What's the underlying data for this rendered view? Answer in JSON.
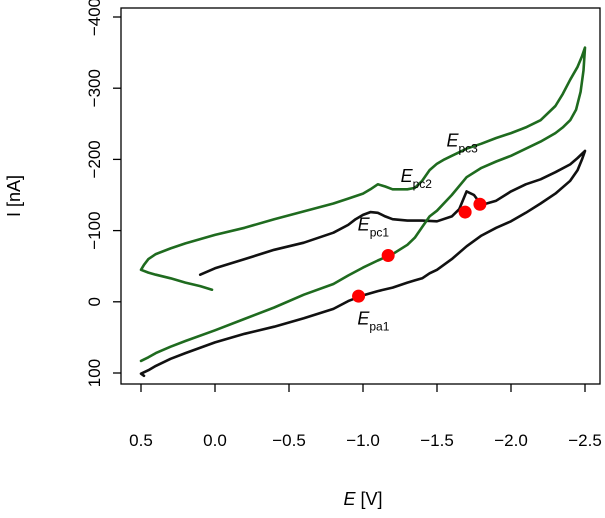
{
  "chart_data": {
    "type": "line",
    "title": "",
    "xlabel_symbol": "E",
    "xlabel_unit": " [V]",
    "ylabel": "I [nA]",
    "xlim": [
      0.6,
      -2.55
    ],
    "ylim": [
      110,
      -410
    ],
    "x_ticks": [
      0.5,
      0.0,
      -0.5,
      -1.0,
      -1.5,
      -2.0,
      -2.5
    ],
    "x_tick_labels": [
      "0.5",
      "0.0",
      "−0.5",
      "−1.0",
      "−1.5",
      "−2.0",
      "−2.5"
    ],
    "y_ticks": [
      100,
      0,
      -100,
      -200,
      -300,
      -400
    ],
    "y_tick_labels": [
      "100",
      "0",
      "−100",
      "−200",
      "−300",
      "−400"
    ],
    "series": [
      {
        "name": "black",
        "color": "#111111",
        "x": [
          0.1,
          0.0,
          -0.2,
          -0.4,
          -0.6,
          -0.8,
          -0.9,
          -0.95,
          -1.0,
          -1.05,
          -1.1,
          -1.15,
          -1.2,
          -1.3,
          -1.4,
          -1.5,
          -1.6,
          -1.65,
          -1.7,
          -1.75,
          -1.8,
          -1.9,
          -2.0,
          -2.1,
          -2.2,
          -2.3,
          -2.4,
          -2.45,
          -2.5,
          -2.48,
          -2.45,
          -2.4,
          -2.3,
          -2.2,
          -2.1,
          -2.0,
          -1.9,
          -1.8,
          -1.7,
          -1.6,
          -1.5,
          -1.45,
          -1.4,
          -1.35,
          -1.3,
          -1.2,
          -1.1,
          -1.0,
          -0.95,
          -0.9,
          -0.8,
          -0.6,
          -0.4,
          -0.2,
          0.0,
          0.2,
          0.3,
          0.4,
          0.45,
          0.5,
          0.48
        ],
        "y": [
          -38,
          -47,
          -60,
          -73,
          -83,
          -97,
          -108,
          -116,
          -122,
          -126,
          -125,
          -120,
          -116,
          -114,
          -114,
          -113,
          -120,
          -130,
          -155,
          -150,
          -136,
          -142,
          -155,
          -165,
          -172,
          -182,
          -193,
          -202,
          -212,
          -200,
          -185,
          -170,
          -152,
          -138,
          -125,
          -113,
          -104,
          -93,
          -78,
          -60,
          -45,
          -40,
          -33,
          -30,
          -27,
          -20,
          -15,
          -9,
          -5,
          -1,
          10,
          23,
          35,
          45,
          57,
          72,
          80,
          90,
          96,
          101,
          104
        ]
      },
      {
        "name": "green",
        "color": "#1f6b1f",
        "x": [
          0.02,
          0.1,
          0.2,
          0.3,
          0.4,
          0.45,
          0.5,
          0.48,
          0.45,
          0.4,
          0.3,
          0.2,
          0.1,
          0.0,
          -0.2,
          -0.4,
          -0.6,
          -0.8,
          -0.9,
          -1.0,
          -1.05,
          -1.1,
          -1.15,
          -1.2,
          -1.3,
          -1.35,
          -1.4,
          -1.45,
          -1.5,
          -1.55,
          -1.6,
          -1.7,
          -1.8,
          -1.9,
          -2.0,
          -2.1,
          -2.2,
          -2.3,
          -2.35,
          -2.4,
          -2.45,
          -2.48,
          -2.5,
          -2.49,
          -2.47,
          -2.44,
          -2.4,
          -2.35,
          -2.3,
          -2.2,
          -2.1,
          -2.0,
          -1.9,
          -1.8,
          -1.7,
          -1.6,
          -1.5,
          -1.45,
          -1.4,
          -1.35,
          -1.3,
          -1.2,
          -1.1,
          -1.0,
          -0.9,
          -0.8,
          -0.6,
          -0.4,
          -0.2,
          0.0,
          0.2,
          0.3,
          0.4,
          0.45,
          0.5
        ],
        "y": [
          -17,
          -22,
          -27,
          -33,
          -38,
          -41,
          -45,
          -52,
          -60,
          -67,
          -75,
          -82,
          -88,
          -94,
          -104,
          -116,
          -127,
          -138,
          -145,
          -152,
          -158,
          -165,
          -162,
          -158,
          -158,
          -160,
          -170,
          -185,
          -194,
          -200,
          -205,
          -215,
          -222,
          -230,
          -237,
          -245,
          -255,
          -275,
          -292,
          -312,
          -330,
          -345,
          -357,
          -325,
          -295,
          -270,
          -255,
          -245,
          -237,
          -225,
          -215,
          -205,
          -197,
          -188,
          -175,
          -150,
          -128,
          -120,
          -105,
          -90,
          -80,
          -67,
          -58,
          -48,
          -37,
          -25,
          -10,
          8,
          24,
          40,
          55,
          63,
          72,
          78,
          83
        ]
      }
    ],
    "markers": [
      {
        "x": -1.17,
        "y": -65
      },
      {
        "x": -0.97,
        "y": -8
      },
      {
        "x": -1.69,
        "y": -126
      },
      {
        "x": -1.79,
        "y": -137
      }
    ],
    "marker_color": "#ff0000",
    "annotations": [
      {
        "sym": "E",
        "sub": "pc1",
        "x": -1.07,
        "y": -100
      },
      {
        "sym": "E",
        "sub": "pa1",
        "x": -1.07,
        "y": 32
      },
      {
        "sym": "E",
        "sub": "pc2",
        "x": -1.36,
        "y": -168
      },
      {
        "sym": "E",
        "sub": "pc3",
        "x": -1.67,
        "y": -218
      }
    ]
  }
}
